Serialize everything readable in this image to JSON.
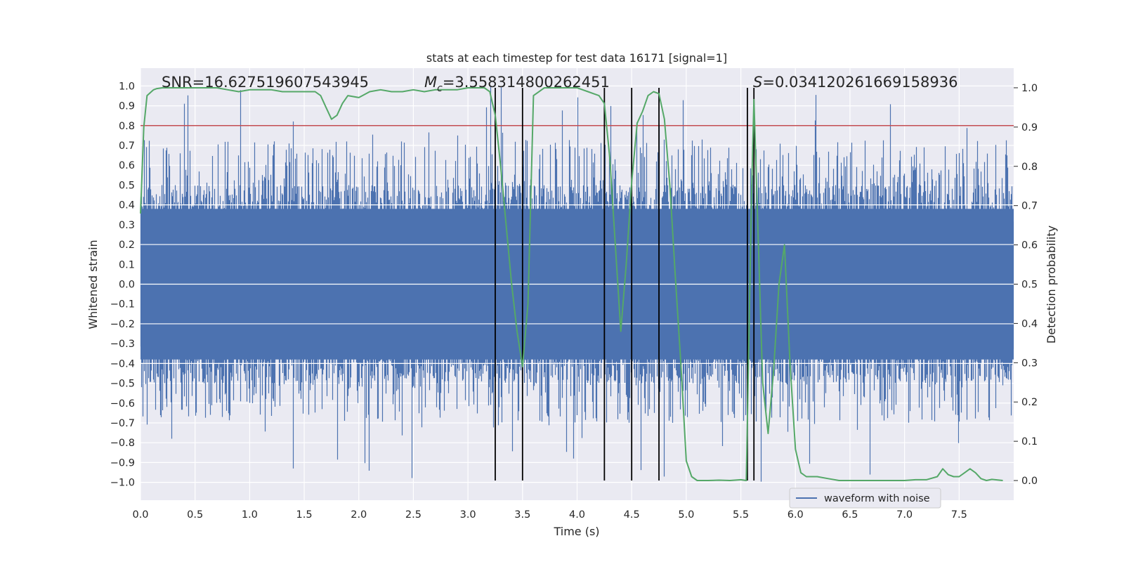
{
  "colors": {
    "background": "#eaeaf2",
    "grid": "#ffffff",
    "waveform": "#4c72b0",
    "probability": "#55a868",
    "threshold": "#c44e52",
    "markers": "#000000"
  },
  "chart_data": {
    "type": "line",
    "title": "stats at each timestep for test data 16171 [signal=1]",
    "xlabel": "Time (s)",
    "ylabel_left": "Whitened strain",
    "ylabel_right": "Detection probability",
    "xlim": [
      0,
      8.0
    ],
    "ylim_left": [
      -1.09,
      1.09
    ],
    "ylim_right": [
      -0.05,
      1.05
    ],
    "xticks": [
      "0.0",
      "0.5",
      "1.0",
      "1.5",
      "2.0",
      "2.5",
      "3.0",
      "3.5",
      "4.0",
      "4.5",
      "5.0",
      "5.5",
      "6.0",
      "6.5",
      "7.0",
      "7.5"
    ],
    "yticks_left": [
      "-1.0",
      "-0.9",
      "-0.8",
      "-0.7",
      "-0.6",
      "-0.5",
      "-0.4",
      "-0.3",
      "-0.2",
      "-0.1",
      "0.0",
      "0.1",
      "0.2",
      "0.3",
      "0.4",
      "0.5",
      "0.6",
      "0.7",
      "0.8",
      "0.9",
      "1.0"
    ],
    "yticks_right": [
      "0.0",
      "0.1",
      "0.2",
      "0.3",
      "0.4",
      "0.5",
      "0.6",
      "0.7",
      "0.8",
      "0.9",
      "1.0"
    ],
    "annotations": {
      "snr": "SNR=16.627519607543945",
      "mc_symbol": "M",
      "mc_sub": "c",
      "mc_value": "=3.558314800262451",
      "s_symbol": "S",
      "s_value": "=0.034120261669158936"
    },
    "legend": "waveform with noise",
    "threshold": 0.8,
    "vlines": [
      3.25,
      3.5,
      4.25,
      4.5,
      4.75,
      5.56,
      5.62
    ],
    "series": [
      {
        "name": "waveform with noise",
        "axis": "left",
        "description": "dense noisy whitened strain, core |y| about 0.4, peaks up to about 1.0"
      },
      {
        "name": "detection probability",
        "axis": "right",
        "x": [
          0.0,
          0.03,
          0.06,
          0.1,
          0.12,
          0.15,
          0.2,
          0.25,
          0.3,
          0.35,
          0.4,
          0.5,
          0.6,
          0.7,
          0.8,
          0.9,
          1.0,
          1.1,
          1.2,
          1.3,
          1.4,
          1.5,
          1.6,
          1.65,
          1.7,
          1.75,
          1.8,
          1.85,
          1.9,
          2.0,
          2.1,
          2.2,
          2.3,
          2.4,
          2.5,
          2.6,
          2.7,
          2.8,
          2.9,
          3.0,
          3.1,
          3.15,
          3.2,
          3.25,
          3.3,
          3.35,
          3.4,
          3.45,
          3.5,
          3.55,
          3.6,
          3.7,
          3.8,
          3.9,
          4.0,
          4.1,
          4.15,
          4.2,
          4.25,
          4.3,
          4.35,
          4.4,
          4.45,
          4.5,
          4.55,
          4.6,
          4.65,
          4.7,
          4.75,
          4.8,
          4.85,
          4.9,
          4.95,
          5.0,
          5.05,
          5.1,
          5.2,
          5.3,
          5.4,
          5.5,
          5.55,
          5.6,
          5.62,
          5.65,
          5.7,
          5.75,
          5.8,
          5.85,
          5.9,
          5.95,
          6.0,
          6.05,
          6.1,
          6.15,
          6.2,
          6.3,
          6.4,
          6.5,
          6.6,
          6.7,
          6.8,
          6.9,
          7.0,
          7.1,
          7.2,
          7.3,
          7.35,
          7.4,
          7.45,
          7.5,
          7.55,
          7.6,
          7.65,
          7.7,
          7.75,
          7.8,
          7.9
        ],
        "values": [
          0.68,
          0.9,
          0.98,
          0.99,
          0.995,
          0.998,
          1.0,
          1.0,
          1.0,
          1.0,
          1.0,
          1.0,
          1.0,
          1.0,
          0.995,
          0.99,
          0.995,
          0.995,
          0.995,
          0.99,
          0.99,
          0.99,
          0.99,
          0.98,
          0.95,
          0.92,
          0.93,
          0.96,
          0.98,
          0.975,
          0.99,
          0.995,
          0.99,
          0.99,
          0.995,
          0.99,
          0.995,
          0.995,
          0.995,
          1.0,
          1.0,
          1.0,
          0.99,
          0.93,
          0.8,
          0.65,
          0.5,
          0.38,
          0.29,
          0.45,
          0.98,
          1.0,
          1.0,
          1.0,
          1.0,
          0.99,
          0.985,
          0.98,
          0.96,
          0.82,
          0.6,
          0.38,
          0.55,
          0.76,
          0.91,
          0.94,
          0.98,
          0.99,
          0.985,
          0.92,
          0.75,
          0.52,
          0.3,
          0.05,
          0.01,
          0.0,
          0.0,
          0.001,
          0.0,
          0.002,
          0.0,
          0.75,
          0.97,
          0.7,
          0.25,
          0.12,
          0.28,
          0.5,
          0.6,
          0.3,
          0.08,
          0.02,
          0.01,
          0.01,
          0.01,
          0.005,
          0.0,
          0.0,
          0.0,
          0.0,
          0.0,
          0.0,
          0.0,
          0.002,
          0.002,
          0.01,
          0.03,
          0.015,
          0.01,
          0.01,
          0.02,
          0.03,
          0.02,
          0.005,
          0.0,
          0.003,
          0.0
        ]
      }
    ]
  }
}
